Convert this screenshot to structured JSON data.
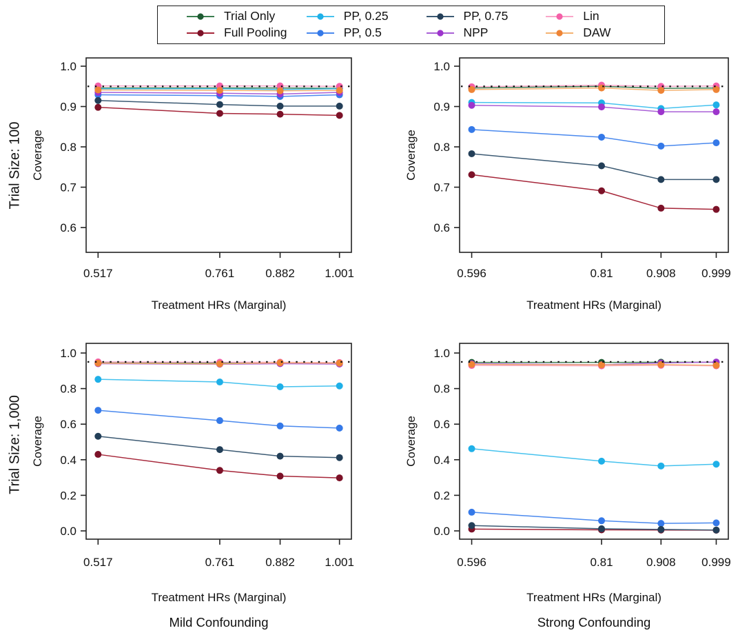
{
  "legend": {
    "items": [
      {
        "label": "Trial Only",
        "line_color": "#3a7d4f",
        "marker_color": "#1e5b33"
      },
      {
        "label": "Full Pooling",
        "line_color": "#a62639",
        "marker_color": "#7c1228"
      },
      {
        "label": "PP, 0.25",
        "line_color": "#45c2ee",
        "marker_color": "#1fb0e8"
      },
      {
        "label": "PP, 0.5",
        "line_color": "#4a89ee",
        "marker_color": "#3579e8"
      },
      {
        "label": "PP, 0.75",
        "line_color": "#3c5a73",
        "marker_color": "#233f58"
      },
      {
        "label": "NPP",
        "line_color": "#a95fd6",
        "marker_color": "#9d35cc"
      },
      {
        "label": "Lin",
        "line_color": "#f9a6c9",
        "marker_color": "#f460a8"
      },
      {
        "label": "DAW",
        "line_color": "#f4b271",
        "marker_color": "#ee8435"
      }
    ]
  },
  "chart_data": {
    "type": "line",
    "x_axis_label": "Treatment HRs (Marginal)",
    "y_axis_label": "Coverage",
    "reference_line": 0.95,
    "reference_line_color": "#111111",
    "row_labels": [
      "Trial Size: 100",
      "Trial Size: 1,000"
    ],
    "col_footers": [
      "Mild Confounding",
      "Strong Confounding"
    ],
    "panels": [
      {
        "grid": "top-left",
        "x_tick_labels": [
          "0.517",
          "0.761",
          "0.882",
          "1.001"
        ],
        "x_values": [
          0.517,
          0.761,
          0.882,
          1.001
        ],
        "y_tick_labels": [
          "1.0",
          "0.9",
          "0.8",
          "0.7",
          "0.6"
        ],
        "y_tick_values": [
          1.0,
          0.9,
          0.8,
          0.7,
          0.6
        ],
        "ylim": [
          0.55,
          1.02
        ],
        "series": [
          {
            "name": "Trial Only",
            "values": [
              0.946,
              0.946,
              0.946,
              0.945
            ]
          },
          {
            "name": "Full Pooling",
            "values": [
              0.898,
              0.883,
              0.881,
              0.878
            ]
          },
          {
            "name": "PP, 0.25",
            "values": [
              0.944,
              0.944,
              0.942,
              0.944
            ]
          },
          {
            "name": "PP, 0.5",
            "values": [
              0.929,
              0.927,
              0.925,
              0.929
            ]
          },
          {
            "name": "PP, 0.75",
            "values": [
              0.915,
              0.905,
              0.901,
              0.901
            ]
          },
          {
            "name": "NPP",
            "values": [
              0.935,
              0.933,
              0.931,
              0.935
            ]
          },
          {
            "name": "Lin",
            "values": [
              0.951,
              0.951,
              0.951,
              0.95
            ]
          },
          {
            "name": "DAW",
            "values": [
              0.941,
              0.94,
              0.939,
              0.94
            ]
          }
        ]
      },
      {
        "grid": "top-right",
        "x_tick_labels": [
          "0.596",
          "0.81",
          "0.908",
          "0.999"
        ],
        "x_values": [
          0.596,
          0.81,
          0.908,
          0.999
        ],
        "y_tick_labels": [
          "1.0",
          "0.9",
          "0.8",
          "0.7",
          "0.6"
        ],
        "y_tick_values": [
          1.0,
          0.9,
          0.8,
          0.7,
          0.6
        ],
        "ylim": [
          0.55,
          1.02
        ],
        "series": [
          {
            "name": "Trial Only",
            "values": [
              0.946,
              0.95,
              0.945,
              0.946
            ]
          },
          {
            "name": "Full Pooling",
            "values": [
              0.731,
              0.691,
              0.648,
              0.645
            ]
          },
          {
            "name": "PP, 0.25",
            "values": [
              0.91,
              0.909,
              0.895,
              0.904
            ]
          },
          {
            "name": "PP, 0.5",
            "values": [
              0.843,
              0.824,
              0.802,
              0.81
            ]
          },
          {
            "name": "PP, 0.75",
            "values": [
              0.783,
              0.753,
              0.719,
              0.719
            ]
          },
          {
            "name": "NPP",
            "values": [
              0.903,
              0.899,
              0.887,
              0.887
            ]
          },
          {
            "name": "Lin",
            "values": [
              0.949,
              0.953,
              0.95,
              0.951
            ]
          },
          {
            "name": "DAW",
            "values": [
              0.942,
              0.946,
              0.94,
              0.942
            ]
          }
        ]
      },
      {
        "grid": "bottom-left",
        "x_tick_labels": [
          "0.517",
          "0.761",
          "0.882",
          "1.001"
        ],
        "x_values": [
          0.517,
          0.761,
          0.882,
          1.001
        ],
        "y_tick_labels": [
          "1.0",
          "0.8",
          "0.6",
          "0.4",
          "0.2",
          "0.0"
        ],
        "y_tick_values": [
          1.0,
          0.8,
          0.6,
          0.4,
          0.2,
          0.0
        ],
        "ylim": [
          -0.04,
          1.03
        ],
        "series": [
          {
            "name": "Trial Only",
            "values": [
              0.945,
              0.944,
              0.945,
              0.945
            ]
          },
          {
            "name": "Full Pooling",
            "values": [
              0.43,
              0.34,
              0.308,
              0.298
            ]
          },
          {
            "name": "PP, 0.25",
            "values": [
              0.852,
              0.837,
              0.81,
              0.815
            ]
          },
          {
            "name": "PP, 0.5",
            "values": [
              0.678,
              0.62,
              0.59,
              0.578
            ]
          },
          {
            "name": "PP, 0.75",
            "values": [
              0.532,
              0.457,
              0.42,
              0.412
            ]
          },
          {
            "name": "NPP",
            "values": [
              0.94,
              0.937,
              0.94,
              0.938
            ]
          },
          {
            "name": "Lin",
            "values": [
              0.95,
              0.948,
              0.948,
              0.946
            ]
          },
          {
            "name": "DAW",
            "values": [
              0.943,
              0.939,
              0.945,
              0.943
            ]
          }
        ]
      },
      {
        "grid": "bottom-right",
        "x_tick_labels": [
          "0.596",
          "0.81",
          "0.908",
          "0.999"
        ],
        "x_values": [
          0.596,
          0.81,
          0.908,
          0.999
        ],
        "y_tick_labels": [
          "1.0",
          "0.8",
          "0.6",
          "0.4",
          "0.2",
          "0.0"
        ],
        "y_tick_values": [
          1.0,
          0.8,
          0.6,
          0.4,
          0.2,
          0.0
        ],
        "ylim": [
          -0.04,
          1.03
        ],
        "series": [
          {
            "name": "Trial Only",
            "values": [
              0.947,
              0.947,
              0.948,
              0.948
            ]
          },
          {
            "name": "Full Pooling",
            "values": [
              0.01,
              0.006,
              0.005,
              0.004
            ]
          },
          {
            "name": "PP, 0.25",
            "values": [
              0.462,
              0.392,
              0.365,
              0.375
            ]
          },
          {
            "name": "PP, 0.5",
            "values": [
              0.105,
              0.057,
              0.042,
              0.045
            ]
          },
          {
            "name": "PP, 0.75",
            "values": [
              0.03,
              0.012,
              0.008,
              0.005
            ]
          },
          {
            "name": "NPP",
            "values": [
              0.94,
              0.934,
              0.944,
              0.949
            ]
          },
          {
            "name": "Lin",
            "values": [
              0.93,
              0.928,
              0.931,
              0.928
            ]
          },
          {
            "name": "DAW",
            "values": [
              0.936,
              0.933,
              0.935,
              0.931
            ]
          }
        ]
      }
    ]
  }
}
